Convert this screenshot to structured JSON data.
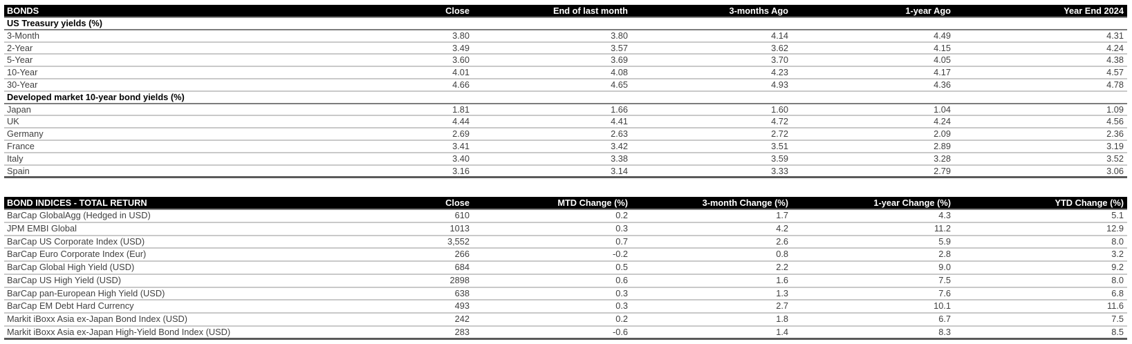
{
  "colors": {
    "header_bg": "#000000",
    "header_text": "#ffffff",
    "row_text": "#3f3f3f",
    "row_separator": "#c9c9c9",
    "section_underline": "#7c7c7c",
    "table_bottom_border": "#595959"
  },
  "bonds": {
    "title": "BONDS",
    "columns": [
      "Close",
      "End of last month",
      "3-months Ago",
      "1-year Ago",
      "Year End 2024"
    ],
    "sections": [
      {
        "label": "US Treasury yields (%)",
        "rows": [
          {
            "name": "3-Month",
            "values": [
              "3.80",
              "3.80",
              "4.14",
              "4.49",
              "4.31"
            ]
          },
          {
            "name": "2-Year",
            "values": [
              "3.49",
              "3.57",
              "3.62",
              "4.15",
              "4.24"
            ]
          },
          {
            "name": "5-Year",
            "values": [
              "3.60",
              "3.69",
              "3.70",
              "4.05",
              "4.38"
            ]
          },
          {
            "name": "10-Year",
            "values": [
              "4.01",
              "4.08",
              "4.23",
              "4.17",
              "4.57"
            ]
          },
          {
            "name": "30-Year",
            "values": [
              "4.66",
              "4.65",
              "4.93",
              "4.36",
              "4.78"
            ]
          }
        ]
      },
      {
        "label": "Developed market 10-year bond yields (%)",
        "rows": [
          {
            "name": "Japan",
            "values": [
              "1.81",
              "1.66",
              "1.60",
              "1.04",
              "1.09"
            ]
          },
          {
            "name": "UK",
            "values": [
              "4.44",
              "4.41",
              "4.72",
              "4.24",
              "4.56"
            ]
          },
          {
            "name": "Germany",
            "values": [
              "2.69",
              "2.63",
              "2.72",
              "2.09",
              "2.36"
            ]
          },
          {
            "name": "France",
            "values": [
              "3.41",
              "3.42",
              "3.51",
              "2.89",
              "3.19"
            ]
          },
          {
            "name": "Italy",
            "values": [
              "3.40",
              "3.38",
              "3.59",
              "3.28",
              "3.52"
            ]
          },
          {
            "name": "Spain",
            "values": [
              "3.16",
              "3.14",
              "3.33",
              "2.79",
              "3.06"
            ]
          }
        ]
      }
    ]
  },
  "bond_indices": {
    "title": "BOND INDICES - TOTAL RETURN",
    "columns": [
      "Close",
      "MTD Change (%)",
      "3-month Change (%)",
      "1-year Change (%)",
      "YTD Change (%)"
    ],
    "rows": [
      {
        "name": "BarCap GlobalAgg (Hedged in USD)",
        "values": [
          "610",
          "0.2",
          "1.7",
          "4.3",
          "5.1"
        ]
      },
      {
        "name": "JPM EMBI Global",
        "values": [
          "1013",
          "0.3",
          "4.2",
          "11.2",
          "12.9"
        ]
      },
      {
        "name": "BarCap US Corporate Index (USD)",
        "values": [
          "3,552",
          "0.7",
          "2.6",
          "5.9",
          "8.0"
        ]
      },
      {
        "name": "BarCap Euro Corporate Index (Eur)",
        "values": [
          "266",
          "-0.2",
          "0.8",
          "2.8",
          "3.2"
        ]
      },
      {
        "name": "BarCap Global High Yield (USD)",
        "values": [
          "684",
          "0.5",
          "2.2",
          "9.0",
          "9.2"
        ]
      },
      {
        "name": "BarCap US High Yield (USD)",
        "values": [
          "2898",
          "0.6",
          "1.6",
          "7.5",
          "8.0"
        ]
      },
      {
        "name": "BarCap pan-European High Yield (USD)",
        "values": [
          "638",
          "0.3",
          "1.3",
          "7.6",
          "6.8"
        ]
      },
      {
        "name": "BarCap EM Debt Hard Currency",
        "values": [
          "493",
          "0.3",
          "2.7",
          "10.1",
          "11.6"
        ]
      },
      {
        "name": "Markit iBoxx Asia ex-Japan  Bond Index (USD)",
        "values": [
          "242",
          "0.2",
          "1.8",
          "6.7",
          "7.5"
        ]
      },
      {
        "name": "Markit iBoxx Asia ex-Japan  High-Yield Bond Index (USD)",
        "values": [
          "283",
          "-0.6",
          "1.4",
          "8.3",
          "8.5"
        ]
      }
    ]
  }
}
